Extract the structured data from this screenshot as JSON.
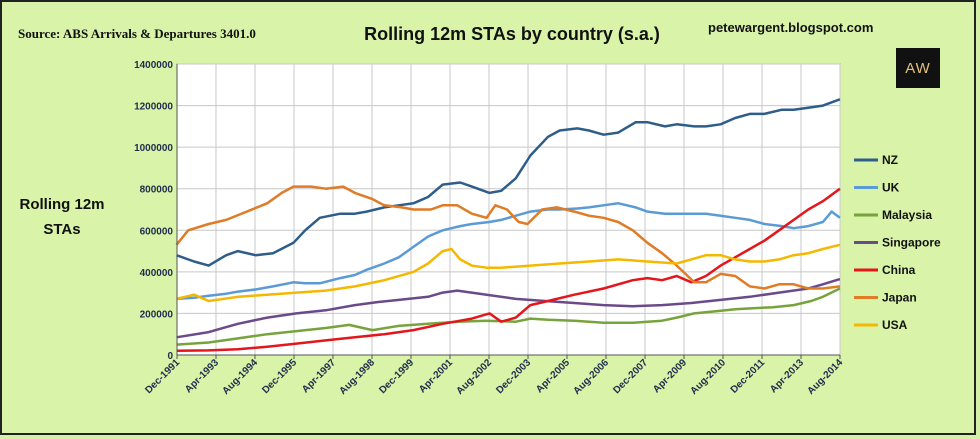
{
  "source": "Source: ABS Arrivals & Departures 3401.0",
  "blog": "petewargent.blogspot.com",
  "logo_text": "AW",
  "chart_data": {
    "type": "line",
    "title": "Rolling 12m STAs by country (s.a.)",
    "ylabel_line1": "Rolling 12m",
    "ylabel_line2": "STAs",
    "ylim": [
      0,
      1400000
    ],
    "yticks": [
      0,
      200000,
      400000,
      600000,
      800000,
      1000000,
      1200000,
      1400000
    ],
    "ytick_labels": [
      "0",
      "200000",
      "400000",
      "600000",
      "800000",
      "1000000",
      "1200000",
      "1400000"
    ],
    "x_range": [
      1991.917,
      2014.583
    ],
    "xtick_positions": [
      1991.917,
      1993.25,
      1994.583,
      1995.917,
      1997.25,
      1998.583,
      1999.917,
      2001.25,
      2002.583,
      2003.917,
      2005.25,
      2006.583,
      2007.917,
      2009.25,
      2010.583,
      2011.917,
      2013.25,
      2014.583
    ],
    "xtick_labels": [
      "Dec-1991",
      "Apr-1993",
      "Aug-1994",
      "Dec-1995",
      "Apr-1997",
      "Aug-1998",
      "Dec-1999",
      "Apr-2001",
      "Aug-2002",
      "Dec-2003",
      "Apr-2005",
      "Aug-2006",
      "Dec-2007",
      "Apr-2009",
      "Aug-2010",
      "Dec-2011",
      "Apr-2013",
      "Aug-2014"
    ],
    "grid": true,
    "legend_position": "right",
    "series": [
      {
        "name": "NZ",
        "color": "#2e5d8a",
        "x": [
          1991.9,
          1992.5,
          1993.0,
          1993.6,
          1994.0,
          1994.6,
          1995.2,
          1995.9,
          1996.3,
          1996.8,
          1997.5,
          1998.0,
          1998.4,
          1999.0,
          1999.5,
          2000.0,
          2000.5,
          2001.0,
          2001.6,
          2002.0,
          2002.6,
          2003.0,
          2003.5,
          2004.0,
          2004.6,
          2005.0,
          2005.6,
          2006.0,
          2006.5,
          2007.0,
          2007.6,
          2008.0,
          2008.6,
          2009.0,
          2009.6,
          2010.0,
          2010.5,
          2011.0,
          2011.5,
          2012.0,
          2012.6,
          2013.0,
          2013.5,
          2014.0,
          2014.58
        ],
        "values": [
          480000,
          450000,
          430000,
          480000,
          500000,
          480000,
          490000,
          540000,
          600000,
          660000,
          680000,
          680000,
          690000,
          710000,
          720000,
          730000,
          760000,
          820000,
          830000,
          810000,
          780000,
          790000,
          850000,
          960000,
          1050000,
          1080000,
          1090000,
          1080000,
          1060000,
          1070000,
          1120000,
          1120000,
          1100000,
          1110000,
          1100000,
          1100000,
          1110000,
          1140000,
          1160000,
          1160000,
          1180000,
          1180000,
          1190000,
          1200000,
          1230000
        ]
      },
      {
        "name": "UK",
        "color": "#5b9bd5",
        "x": [
          1991.9,
          1992.5,
          1993.0,
          1993.6,
          1994.0,
          1994.6,
          1995.2,
          1995.9,
          1996.3,
          1996.8,
          1997.5,
          1998.0,
          1998.4,
          1999.0,
          1999.5,
          2000.0,
          2000.5,
          2001.0,
          2001.6,
          2002.0,
          2002.6,
          2003.0,
          2003.5,
          2004.0,
          2004.6,
          2005.0,
          2005.6,
          2006.0,
          2006.5,
          2007.0,
          2007.6,
          2008.0,
          2008.6,
          2009.0,
          2009.6,
          2010.0,
          2010.5,
          2011.0,
          2011.5,
          2012.0,
          2012.6,
          2013.0,
          2013.5,
          2014.0,
          2014.3,
          2014.58
        ],
        "values": [
          270000,
          275000,
          285000,
          295000,
          305000,
          315000,
          330000,
          350000,
          345000,
          345000,
          370000,
          385000,
          410000,
          440000,
          470000,
          520000,
          570000,
          600000,
          620000,
          630000,
          640000,
          650000,
          670000,
          690000,
          700000,
          700000,
          705000,
          710000,
          720000,
          730000,
          710000,
          690000,
          680000,
          680000,
          680000,
          680000,
          670000,
          660000,
          650000,
          630000,
          620000,
          610000,
          620000,
          640000,
          690000,
          660000
        ]
      },
      {
        "name": "Malaysia",
        "color": "#77a33c",
        "x": [
          1991.9,
          1993.0,
          1994.0,
          1995.0,
          1996.0,
          1997.0,
          1997.8,
          1998.6,
          1999.5,
          2000.5,
          2001.5,
          2002.5,
          2003.5,
          2004.0,
          2004.6,
          2005.5,
          2006.5,
          2007.5,
          2008.5,
          2009.0,
          2009.6,
          2010.3,
          2011.0,
          2011.6,
          2012.3,
          2013.0,
          2013.6,
          2014.0,
          2014.58
        ],
        "values": [
          50000,
          60000,
          80000,
          100000,
          115000,
          130000,
          145000,
          120000,
          140000,
          150000,
          160000,
          165000,
          160000,
          175000,
          170000,
          165000,
          155000,
          155000,
          165000,
          180000,
          200000,
          210000,
          220000,
          225000,
          230000,
          240000,
          260000,
          280000,
          320000
        ]
      },
      {
        "name": "Singapore",
        "color": "#6b4a8a",
        "x": [
          1991.9,
          1993.0,
          1994.0,
          1995.0,
          1996.0,
          1997.0,
          1998.0,
          1998.8,
          1999.5,
          2000.5,
          2001.0,
          2001.5,
          2002.5,
          2003.5,
          2004.5,
          2005.5,
          2006.5,
          2007.5,
          2008.5,
          2009.5,
          2010.5,
          2011.5,
          2012.5,
          2013.5,
          2014.0,
          2014.58
        ],
        "values": [
          85000,
          110000,
          150000,
          180000,
          200000,
          215000,
          240000,
          255000,
          265000,
          280000,
          300000,
          310000,
          290000,
          270000,
          260000,
          250000,
          240000,
          235000,
          240000,
          250000,
          265000,
          280000,
          300000,
          320000,
          340000,
          365000
        ]
      },
      {
        "name": "China",
        "color": "#e3161c",
        "x": [
          1991.9,
          1993.0,
          1994.0,
          1995.0,
          1996.0,
          1997.0,
          1998.0,
          1999.0,
          2000.0,
          2001.0,
          2002.0,
          2002.6,
          2003.0,
          2003.5,
          2004.0,
          2004.6,
          2005.5,
          2006.5,
          2007.5,
          2008.0,
          2008.5,
          2009.0,
          2009.5,
          2010.0,
          2010.5,
          2011.0,
          2011.5,
          2012.0,
          2012.5,
          2013.0,
          2013.5,
          2014.0,
          2014.58
        ],
        "values": [
          20000,
          22000,
          28000,
          40000,
          55000,
          70000,
          85000,
          100000,
          120000,
          150000,
          175000,
          200000,
          160000,
          180000,
          240000,
          260000,
          290000,
          320000,
          360000,
          370000,
          360000,
          380000,
          350000,
          380000,
          430000,
          470000,
          510000,
          550000,
          600000,
          650000,
          700000,
          740000,
          800000
        ]
      },
      {
        "name": "Japan",
        "color": "#e07b26",
        "x": [
          1991.9,
          1992.3,
          1993.0,
          1993.6,
          1994.3,
          1995.0,
          1995.5,
          1995.9,
          1996.5,
          1997.0,
          1997.6,
          1998.0,
          1998.6,
          1999.0,
          1999.6,
          2000.0,
          2000.6,
          2001.0,
          2001.5,
          2002.0,
          2002.5,
          2002.8,
          2003.2,
          2003.6,
          2003.9,
          2004.4,
          2004.9,
          2005.5,
          2006.0,
          2006.5,
          2007.0,
          2007.5,
          2008.0,
          2008.5,
          2009.0,
          2009.3,
          2009.6,
          2010.0,
          2010.5,
          2011.0,
          2011.5,
          2012.0,
          2012.5,
          2013.0,
          2013.5,
          2014.0,
          2014.58
        ],
        "values": [
          530000,
          600000,
          630000,
          650000,
          690000,
          730000,
          780000,
          810000,
          810000,
          800000,
          810000,
          780000,
          750000,
          720000,
          710000,
          700000,
          700000,
          720000,
          720000,
          680000,
          660000,
          720000,
          700000,
          640000,
          630000,
          700000,
          710000,
          690000,
          670000,
          660000,
          640000,
          600000,
          540000,
          490000,
          430000,
          390000,
          350000,
          350000,
          390000,
          380000,
          330000,
          320000,
          340000,
          340000,
          320000,
          320000,
          330000
        ]
      },
      {
        "name": "USA",
        "color": "#f5b800",
        "x": [
          1991.9,
          1992.5,
          1993.0,
          1994.0,
          1995.0,
          1996.0,
          1997.0,
          1998.0,
          1999.0,
          2000.0,
          2000.5,
          2001.0,
          2001.3,
          2001.6,
          2002.0,
          2002.5,
          2003.0,
          2004.0,
          2005.0,
          2006.0,
          2007.0,
          2008.0,
          2009.0,
          2009.5,
          2010.0,
          2010.5,
          2011.0,
          2011.5,
          2012.0,
          2012.5,
          2013.0,
          2013.5,
          2014.0,
          2014.58
        ],
        "values": [
          270000,
          290000,
          260000,
          280000,
          290000,
          300000,
          310000,
          330000,
          360000,
          400000,
          440000,
          500000,
          510000,
          460000,
          430000,
          420000,
          420000,
          430000,
          440000,
          450000,
          460000,
          450000,
          440000,
          460000,
          480000,
          480000,
          460000,
          450000,
          450000,
          460000,
          480000,
          490000,
          510000,
          530000
        ]
      }
    ]
  }
}
